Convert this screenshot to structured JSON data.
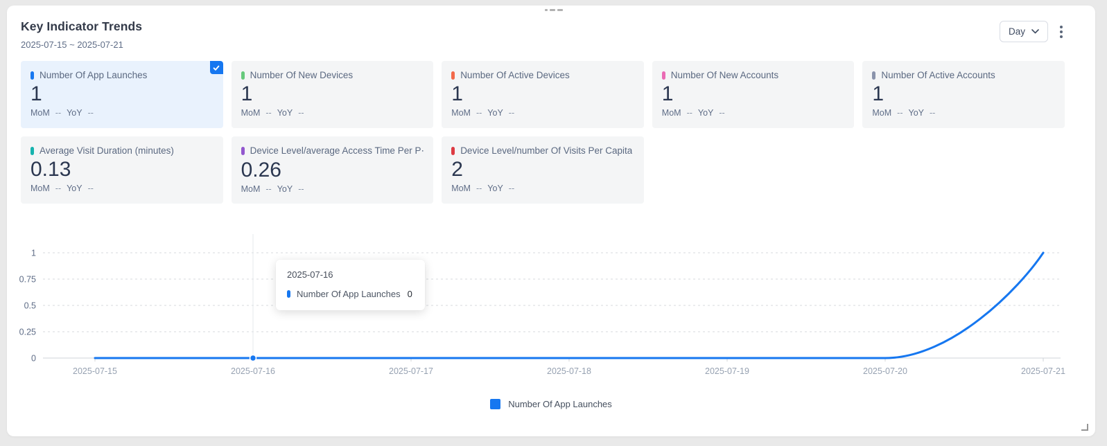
{
  "header": {
    "title": "Key Indicator Trends",
    "date_range": "2025-07-15 ~ 2025-07-21",
    "granularity": {
      "selected": "Day"
    }
  },
  "icons": {
    "chevron_down": "chevron-down",
    "more_options": "kebab-vertical-dots",
    "selected_check": "checkmark",
    "drag_grip": "grip-dashes",
    "resize_corner": "corner-bracket"
  },
  "colors": {
    "accent": "#1677f0",
    "card_bg": "#f4f5f6",
    "selected_card_bg": "#e9f2fd"
  },
  "cards": [
    {
      "label": "Number Of App Launches",
      "value": "1",
      "mom_label": "MoM",
      "mom_value": "--",
      "yoy_label": "YoY",
      "yoy_value": "--",
      "color": "#1677f0",
      "selected": true
    },
    {
      "label": "Number Of New Devices",
      "value": "1",
      "mom_label": "MoM",
      "mom_value": "--",
      "yoy_label": "YoY",
      "yoy_value": "--",
      "color": "#67c97c",
      "selected": false
    },
    {
      "label": "Number Of Active Devices",
      "value": "1",
      "mom_label": "MoM",
      "mom_value": "--",
      "yoy_label": "YoY",
      "yoy_value": "--",
      "color": "#f26a4b",
      "selected": false
    },
    {
      "label": "Number Of New Accounts",
      "value": "1",
      "mom_label": "MoM",
      "mom_value": "--",
      "yoy_label": "YoY",
      "yoy_value": "--",
      "color": "#ea6bb4",
      "selected": false
    },
    {
      "label": "Number Of Active Accounts",
      "value": "1",
      "mom_label": "MoM",
      "mom_value": "--",
      "yoy_label": "YoY",
      "yoy_value": "--",
      "color": "#8a93ab",
      "selected": false
    },
    {
      "label": "Average Visit Duration (minutes)",
      "value": "0.13",
      "mom_label": "MoM",
      "mom_value": "--",
      "yoy_label": "YoY",
      "yoy_value": "--",
      "color": "#16b3ae",
      "selected": false
    },
    {
      "label": "Device Level/average Access Time Per P⋯",
      "value": "0.26",
      "mom_label": "MoM",
      "mom_value": "--",
      "yoy_label": "YoY",
      "yoy_value": "--",
      "color": "#9257ce",
      "selected": false
    },
    {
      "label": "Device Level/number Of Visits Per Capita",
      "value": "2",
      "mom_label": "MoM",
      "mom_value": "--",
      "yoy_label": "YoY",
      "yoy_value": "--",
      "color": "#dd3b43",
      "selected": false
    }
  ],
  "chart_data": {
    "type": "line",
    "title": "",
    "xlabel": "",
    "ylabel": "",
    "x": [
      "2025-07-15",
      "2025-07-16",
      "2025-07-17",
      "2025-07-18",
      "2025-07-19",
      "2025-07-20",
      "2025-07-21"
    ],
    "series": [
      {
        "name": "Number Of App Launches",
        "color": "#1677f0",
        "values": [
          0,
          0,
          0,
          0,
          0,
          0,
          1
        ],
        "smooth": true
      }
    ],
    "ylim": [
      0,
      1
    ],
    "yticks": [
      0,
      0.25,
      0.5,
      0.75,
      1
    ],
    "grid": "horizontal-dashed",
    "legend_position": "bottom"
  },
  "tooltip": {
    "date": "2025-07-16",
    "series": "Number Of App Launches",
    "value": "0",
    "color": "#1677f0"
  },
  "legend": {
    "items": [
      {
        "label": "Number Of App Launches",
        "color": "#1677f0"
      }
    ]
  }
}
